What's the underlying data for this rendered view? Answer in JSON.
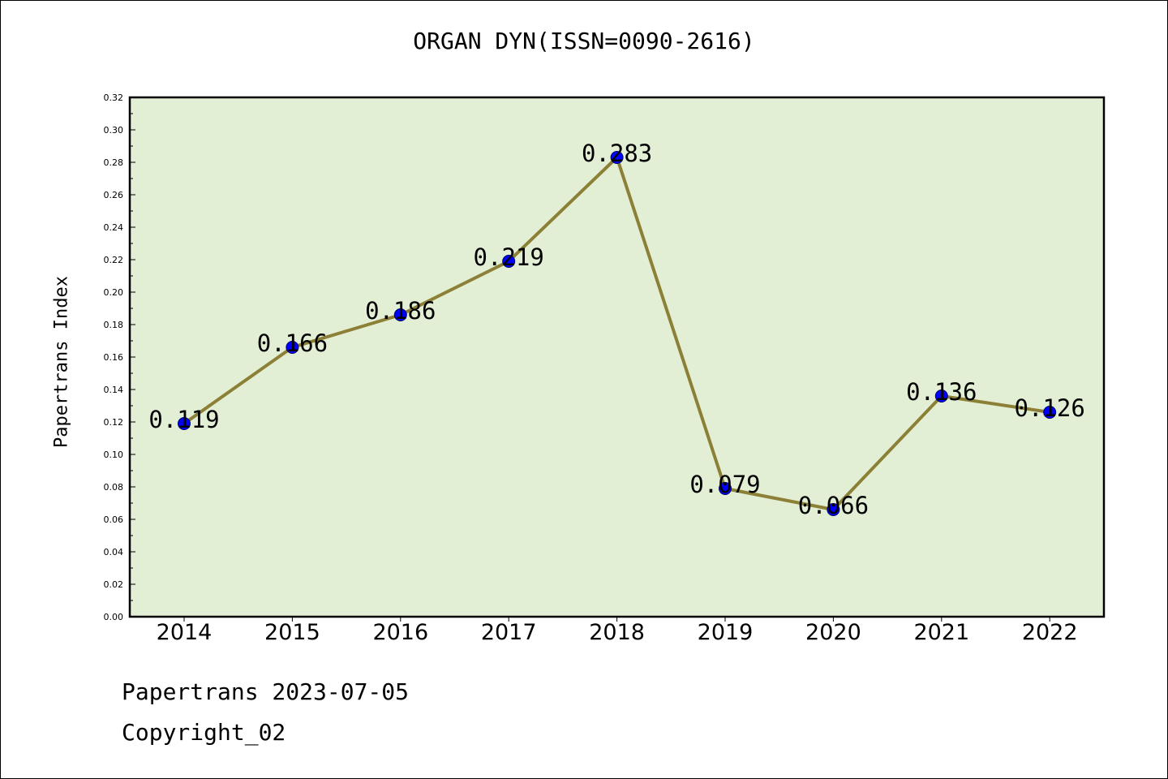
{
  "chart_data": {
    "type": "line",
    "title": "ORGAN DYN(ISSN=0090-2616)",
    "xlabel": "",
    "ylabel": "Papertrans Index",
    "categories": [
      "2014",
      "2015",
      "2016",
      "2017",
      "2018",
      "2019",
      "2020",
      "2021",
      "2022"
    ],
    "values": [
      0.119,
      0.166,
      0.186,
      0.219,
      0.283,
      0.079,
      0.066,
      0.136,
      0.126
    ],
    "data_labels": [
      "0.119",
      "0.166",
      "0.186",
      "0.219",
      "0.283",
      "0.079",
      "0.066",
      "0.136",
      "0.126"
    ],
    "ylim": [
      0,
      0.32
    ],
    "yticks": [
      "0.00",
      "0.02",
      "0.04",
      "0.06",
      "0.08",
      "0.10",
      "0.12",
      "0.14",
      "0.16",
      "0.18",
      "0.20",
      "0.22",
      "0.24",
      "0.26",
      "0.28",
      "0.30",
      "0.32"
    ],
    "grid": false,
    "legend": "none",
    "colors": {
      "plot_background": "#e2efd5",
      "line": "#8b8035",
      "marker": "#0000ff",
      "axis": "#000000"
    }
  },
  "footer": {
    "line1": "Papertrans 2023-07-05",
    "line2": "Copyright_02"
  }
}
